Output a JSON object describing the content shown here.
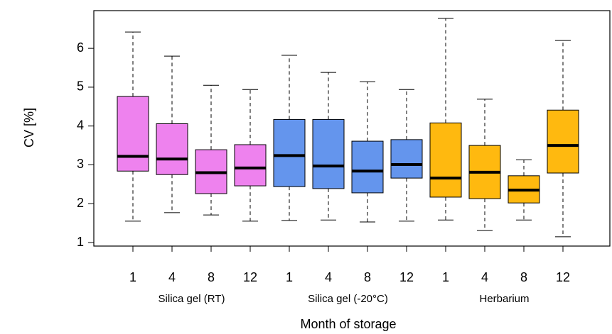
{
  "chart_data": {
    "type": "boxplot",
    "y_label": "CV [%]",
    "x_label": "Month of storage",
    "ylim": [
      0.91,
      6.97
    ],
    "yticks": [
      1,
      2,
      3,
      4,
      5,
      6
    ],
    "series": [
      {
        "name": "Silica gel (RT)",
        "color": "#ee82ee",
        "categories": [
          "1",
          "4",
          "8",
          "12"
        ],
        "min": [
          1.55,
          1.77,
          1.71,
          1.55
        ],
        "q1": [
          2.84,
          2.75,
          2.26,
          2.46
        ],
        "median": [
          3.22,
          3.15,
          2.8,
          2.92
        ],
        "q3": [
          4.76,
          4.06,
          3.39,
          3.52
        ],
        "max": [
          6.42,
          5.8,
          5.05,
          4.94
        ]
      },
      {
        "name": "Silica gel (-20°C)",
        "color": "#6495ed",
        "categories": [
          "1",
          "4",
          "8",
          "12"
        ],
        "min": [
          1.57,
          1.58,
          1.53,
          1.55
        ],
        "q1": [
          2.44,
          2.39,
          2.28,
          2.66
        ],
        "median": [
          3.24,
          2.97,
          2.84,
          3.01
        ],
        "q3": [
          4.17,
          4.17,
          3.61,
          3.65
        ],
        "max": [
          5.82,
          5.38,
          5.14,
          4.94
        ]
      },
      {
        "name": "Herbarium",
        "color": "#ffb90f",
        "categories": [
          "1",
          "4",
          "8",
          "12"
        ],
        "min": [
          1.58,
          1.31,
          1.58,
          1.15
        ],
        "q1": [
          2.17,
          2.13,
          2.02,
          2.79
        ],
        "median": [
          2.66,
          2.81,
          2.35,
          3.5
        ],
        "q3": [
          4.08,
          3.5,
          2.72,
          4.41
        ],
        "max": [
          6.77,
          4.69,
          3.13,
          6.2
        ]
      }
    ]
  }
}
